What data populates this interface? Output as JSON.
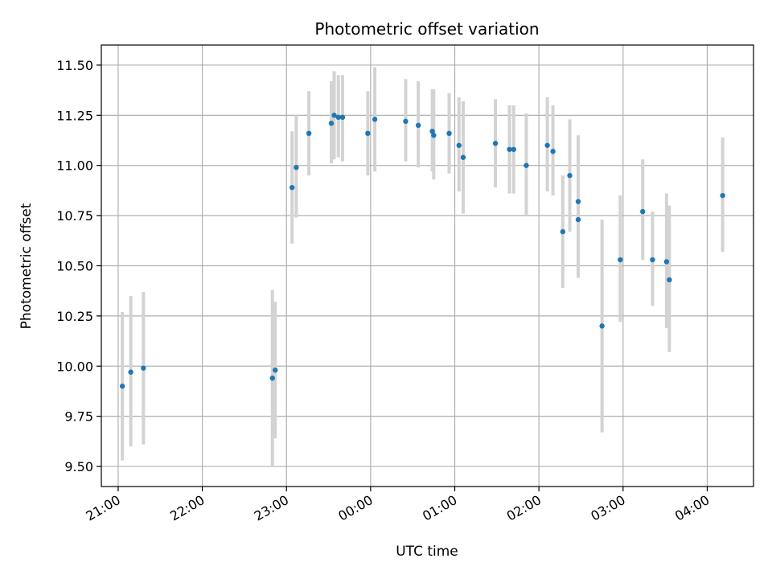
{
  "chart_data": {
    "type": "scatter",
    "title": "Photometric offset variation",
    "xlabel": "UTC time",
    "ylabel": "Photometric offset",
    "x_ticks": [
      "21:00",
      "22:00",
      "23:00",
      "00:00",
      "01:00",
      "02:00",
      "03:00",
      "04:00"
    ],
    "y_ticks": [
      "9.50",
      "9.75",
      "10.00",
      "10.25",
      "10.50",
      "10.75",
      "11.00",
      "11.25",
      "11.50"
    ],
    "xlim": [
      "20:48",
      "04:33"
    ],
    "ylim": [
      9.4,
      11.6
    ],
    "grid": true,
    "colors": {
      "point": "#1f77b4",
      "errorbar": "#d3d3d3",
      "grid": "#b0b0b0"
    },
    "series": [
      {
        "points": [
          {
            "x": "21:03",
            "y": 9.9,
            "ylo": 9.53,
            "yhi": 10.27
          },
          {
            "x": "21:09",
            "y": 9.97,
            "ylo": 9.6,
            "yhi": 10.35
          },
          {
            "x": "21:18",
            "y": 9.99,
            "ylo": 9.61,
            "yhi": 10.37
          },
          {
            "x": "22:50",
            "y": 9.94,
            "ylo": 9.5,
            "yhi": 10.38
          },
          {
            "x": "22:52",
            "y": 9.98,
            "ylo": 9.64,
            "yhi": 10.32
          },
          {
            "x": "23:04",
            "y": 10.89,
            "ylo": 10.61,
            "yhi": 11.17
          },
          {
            "x": "23:07",
            "y": 10.99,
            "ylo": 10.74,
            "yhi": 11.25
          },
          {
            "x": "23:16",
            "y": 11.16,
            "ylo": 10.95,
            "yhi": 11.37
          },
          {
            "x": "23:32",
            "y": 11.21,
            "ylo": 11.01,
            "yhi": 11.42
          },
          {
            "x": "23:34",
            "y": 11.25,
            "ylo": 11.03,
            "yhi": 11.47
          },
          {
            "x": "23:37",
            "y": 11.24,
            "ylo": 11.04,
            "yhi": 11.45
          },
          {
            "x": "23:40",
            "y": 11.24,
            "ylo": 11.02,
            "yhi": 11.45
          },
          {
            "x": "23:58",
            "y": 11.16,
            "ylo": 10.95,
            "yhi": 11.37
          },
          {
            "x": "00:03",
            "y": 11.23,
            "ylo": 10.97,
            "yhi": 11.49
          },
          {
            "x": "00:25",
            "y": 11.22,
            "ylo": 11.02,
            "yhi": 11.43
          },
          {
            "x": "00:34",
            "y": 11.2,
            "ylo": 10.99,
            "yhi": 11.42
          },
          {
            "x": "00:44",
            "y": 11.17,
            "ylo": 10.97,
            "yhi": 11.38
          },
          {
            "x": "00:45",
            "y": 11.15,
            "ylo": 10.93,
            "yhi": 11.38
          },
          {
            "x": "00:56",
            "y": 11.16,
            "ylo": 10.96,
            "yhi": 11.36
          },
          {
            "x": "01:03",
            "y": 11.1,
            "ylo": 10.87,
            "yhi": 11.34
          },
          {
            "x": "01:06",
            "y": 11.04,
            "ylo": 10.76,
            "yhi": 11.32
          },
          {
            "x": "01:29",
            "y": 11.11,
            "ylo": 10.89,
            "yhi": 11.33
          },
          {
            "x": "01:39",
            "y": 11.08,
            "ylo": 10.86,
            "yhi": 11.3
          },
          {
            "x": "01:42",
            "y": 11.08,
            "ylo": 10.86,
            "yhi": 11.3
          },
          {
            "x": "01:51",
            "y": 11.0,
            "ylo": 10.75,
            "yhi": 11.26
          },
          {
            "x": "02:06",
            "y": 11.1,
            "ylo": 10.87,
            "yhi": 11.34
          },
          {
            "x": "02:10",
            "y": 11.07,
            "ylo": 10.85,
            "yhi": 11.3
          },
          {
            "x": "02:17",
            "y": 10.67,
            "ylo": 10.39,
            "yhi": 10.95
          },
          {
            "x": "02:22",
            "y": 10.95,
            "ylo": 10.67,
            "yhi": 11.23
          },
          {
            "x": "02:28",
            "y": 10.82,
            "ylo": 10.49,
            "yhi": 11.15
          },
          {
            "x": "02:28",
            "y": 10.73,
            "ylo": 10.44,
            "yhi": 11.02
          },
          {
            "x": "02:45",
            "y": 10.2,
            "ylo": 9.67,
            "yhi": 10.73
          },
          {
            "x": "02:58",
            "y": 10.53,
            "ylo": 10.22,
            "yhi": 10.85
          },
          {
            "x": "03:14",
            "y": 10.77,
            "ylo": 10.53,
            "yhi": 11.03
          },
          {
            "x": "03:21",
            "y": 10.53,
            "ylo": 10.3,
            "yhi": 10.77
          },
          {
            "x": "03:31",
            "y": 10.52,
            "ylo": 10.19,
            "yhi": 10.86
          },
          {
            "x": "03:33",
            "y": 10.43,
            "ylo": 10.07,
            "yhi": 10.8
          },
          {
            "x": "04:11",
            "y": 10.85,
            "ylo": 10.57,
            "yhi": 11.14
          }
        ]
      }
    ]
  }
}
